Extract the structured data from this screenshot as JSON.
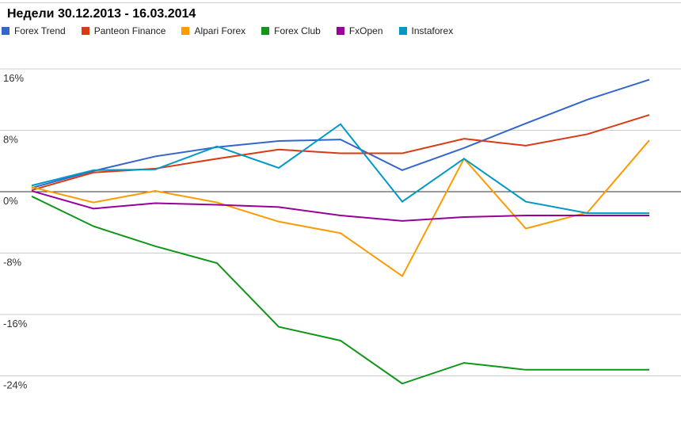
{
  "chart_data": {
    "type": "line",
    "title": "Недели 30.12.2013 - 16.03.2014",
    "xlabel": "",
    "ylabel": "",
    "x": [
      1,
      2,
      3,
      4,
      5,
      6,
      7,
      8,
      9,
      10,
      11
    ],
    "ylim": [
      -26,
      18
    ],
    "yticks": [
      16,
      8,
      0,
      -8,
      -16,
      -24
    ],
    "ytick_labels": [
      "16%",
      "8%",
      "0%",
      "-8%",
      "-16%",
      "-24%"
    ],
    "grid": true,
    "legend_position": "top-left",
    "series": [
      {
        "name": "Forex Trend",
        "color": "#3366cc",
        "values": [
          0.5,
          2.7,
          4.6,
          5.8,
          6.6,
          6.8,
          2.8,
          5.7,
          8.9,
          12.0,
          14.6
        ]
      },
      {
        "name": "Panteon Finance",
        "color": "#dc3912",
        "values": [
          0.2,
          2.5,
          3.0,
          4.3,
          5.5,
          5.0,
          5.0,
          6.9,
          6.0,
          7.5,
          10.0
        ]
      },
      {
        "name": "Alpari Forex",
        "color": "#ff9900",
        "values": [
          0.6,
          -1.4,
          0.1,
          -1.4,
          -3.9,
          -5.4,
          -11.0,
          4.3,
          -4.8,
          -2.7,
          6.7
        ]
      },
      {
        "name": "Forex Club",
        "color": "#109618",
        "values": [
          -0.6,
          -4.5,
          -7.1,
          -9.3,
          -17.6,
          -19.4,
          -25.0,
          -22.3,
          -23.2,
          -23.2,
          -23.2
        ]
      },
      {
        "name": "FxOpen",
        "color": "#990099",
        "values": [
          0.1,
          -2.2,
          -1.5,
          -1.7,
          -2.0,
          -3.1,
          -3.8,
          -3.3,
          -3.1,
          -3.1,
          -3.1
        ]
      },
      {
        "name": "Instaforex",
        "color": "#0099c6",
        "values": [
          0.8,
          2.8,
          2.9,
          5.9,
          3.1,
          8.8,
          -1.3,
          4.3,
          -1.3,
          -2.8,
          -2.8
        ]
      }
    ]
  }
}
